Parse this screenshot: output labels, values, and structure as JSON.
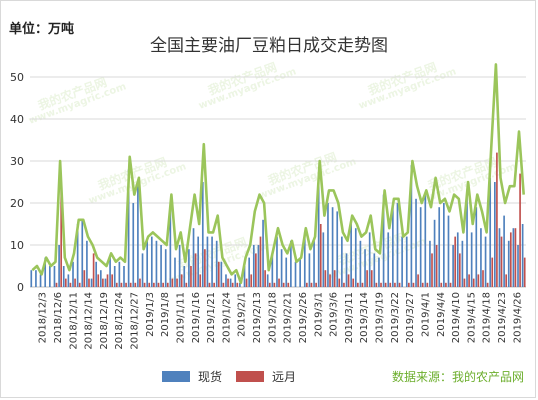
{
  "header": {
    "unit": "单位：万吨",
    "title": "全国主要油厂豆粕日成交走势图"
  },
  "legend": {
    "spot_label": "现货",
    "forward_label": "远月"
  },
  "source_note": "数据来源：我的农产品网",
  "watermark": {
    "text": "我的农产品网",
    "url": "www.myagric.com"
  },
  "colors": {
    "spot": "#4f81bd",
    "forward": "#c0504d",
    "total": "#9bc55b",
    "grid": "#d9d9d9",
    "source": "#6cae2c"
  },
  "chart_data": {
    "type": "bar",
    "title": "全国主要油厂豆粕日成交走势图",
    "ylabel": "单位：万吨",
    "ylim": [
      0,
      55
    ],
    "yticks": [
      0,
      10,
      20,
      30,
      40,
      50
    ],
    "grid": true,
    "legend_position": "bottom",
    "x_tick_labels": [
      "2018/12/3",
      "2018/12/6",
      "2018/12/11",
      "2018/12/14",
      "2018/12/19",
      "2018/12/24",
      "2018/12/27",
      "2019/1/3",
      "2019/1/8",
      "2019/1/11",
      "2019/1/16",
      "2019/1/21",
      "2019/1/24",
      "2019/2/1",
      "2019/2/13",
      "2019/2/18",
      "2019/2/21",
      "2019/2/26",
      "2019/3/1",
      "2019/3/6",
      "2019/3/11",
      "2019/3/14",
      "2019/3/19",
      "2019/3/22",
      "2019/3/27",
      "2019/4/1",
      "2019/4/4",
      "2019/4/10",
      "2019/4/15",
      "2019/4/18",
      "2019/4/23",
      "2019/4/26"
    ],
    "series": [
      {
        "name": "现货",
        "values": [
          4,
          4,
          3,
          7,
          5,
          5,
          10,
          5,
          3,
          6,
          15,
          16,
          11,
          2,
          6,
          4,
          2,
          7,
          5,
          6,
          5,
          28,
          20,
          24,
          8,
          11,
          12,
          11,
          10,
          9,
          20,
          7,
          10,
          5,
          9,
          14,
          12,
          25,
          12,
          12,
          11,
          6,
          3,
          2,
          3,
          1,
          5,
          7,
          10,
          10,
          16,
          3,
          8,
          12,
          9,
          7,
          11,
          6,
          7,
          13,
          8,
          11,
          26,
          13,
          20,
          19,
          18,
          12,
          8,
          15,
          14,
          11,
          9,
          13,
          8,
          7,
          22,
          13,
          20,
          20,
          12,
          12,
          29,
          21,
          19,
          22,
          11,
          16,
          19,
          20,
          17,
          10,
          13,
          11,
          22,
          13,
          19,
          14,
          12,
          26,
          25,
          14,
          17,
          11,
          14,
          10,
          15
        ]
      },
      {
        "name": "远月",
        "values": [
          0,
          0,
          0,
          0,
          0,
          1,
          25,
          2,
          1,
          2,
          1,
          4,
          2,
          8,
          3,
          2,
          3,
          3,
          1,
          1,
          1,
          1,
          1,
          2,
          1,
          1,
          1,
          1,
          1,
          1,
          2,
          2,
          3,
          1,
          5,
          8,
          3,
          9,
          1,
          1,
          6,
          1,
          2,
          1,
          1,
          0,
          2,
          3,
          8,
          12,
          4,
          1,
          1,
          2,
          1,
          1,
          0,
          0,
          0,
          1,
          1,
          1,
          15,
          4,
          3,
          4,
          2,
          1,
          3,
          2,
          1,
          1,
          4,
          4,
          1,
          1,
          1,
          1,
          1,
          1,
          0,
          1,
          1,
          3,
          1,
          1,
          8,
          10,
          1,
          1,
          1,
          12,
          8,
          2,
          3,
          2,
          3,
          4,
          1,
          7,
          32,
          12,
          3,
          13,
          14,
          27,
          7
        ]
      },
      {
        "name": "",
        "values": [
          4,
          5,
          3,
          7,
          5,
          6,
          30,
          7,
          4,
          8,
          16,
          16,
          12,
          10,
          7,
          6,
          5,
          8,
          6,
          7,
          6,
          31,
          22,
          26,
          9,
          12,
          13,
          12,
          11,
          10,
          22,
          9,
          13,
          6,
          14,
          22,
          15,
          34,
          13,
          13,
          17,
          7,
          5,
          3,
          4,
          1,
          7,
          10,
          18,
          22,
          20,
          4,
          9,
          14,
          10,
          8,
          11,
          6,
          7,
          14,
          9,
          12,
          30,
          17,
          23,
          23,
          20,
          13,
          11,
          17,
          15,
          12,
          13,
          17,
          9,
          8,
          23,
          14,
          21,
          21,
          12,
          13,
          30,
          24,
          20,
          23,
          19,
          26,
          20,
          21,
          18,
          22,
          21,
          13,
          25,
          15,
          22,
          18,
          13,
          33,
          53,
          26,
          20,
          24,
          24,
          37,
          22
        ]
      }
    ]
  }
}
